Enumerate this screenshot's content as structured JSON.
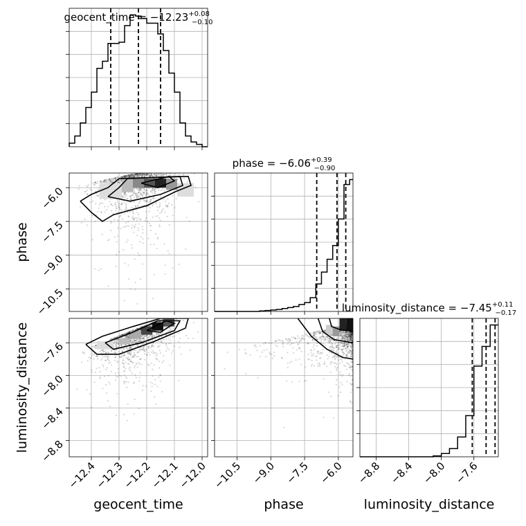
{
  "chart_data": {
    "type": "corner",
    "parameters": [
      {
        "key": "geocent_time",
        "label": "geocent_time",
        "title_main": "geocent_time = −12.23",
        "title_plus": "+0.08",
        "title_minus": "−0.10",
        "range": [
          -12.48,
          -11.98
        ],
        "ticks": [
          -12.4,
          -12.3,
          -12.2,
          -12.1,
          -12.0
        ],
        "tick_labels": [
          "−12.4",
          "−12.3",
          "−12.2",
          "−12.1",
          "−12.0"
        ],
        "quantiles": [
          -12.33,
          -12.23,
          -12.15
        ],
        "hist_edges": [
          -12.48,
          -12.46,
          -12.44,
          -12.42,
          -12.4,
          -12.38,
          -12.36,
          -12.34,
          -12.32,
          -12.3,
          -12.28,
          -12.26,
          -12.24,
          -12.22,
          -12.2,
          -12.18,
          -12.16,
          -12.14,
          -12.12,
          -12.1,
          -12.08,
          -12.06,
          -12.04,
          -12.02,
          -12.0,
          -11.98
        ],
        "hist_counts": [
          3,
          9,
          20,
          33,
          46,
          66,
          72,
          87,
          87,
          88,
          102,
          111,
          110,
          108,
          104,
          104,
          95,
          81,
          62,
          46,
          20,
          9,
          4,
          2,
          0
        ]
      },
      {
        "key": "phase",
        "label": "phase",
        "title_main": "phase = −6.06",
        "title_plus": "+0.39",
        "title_minus": "−0.90",
        "range": [
          -11.5,
          -5.35
        ],
        "ticks": [
          -10.5,
          -9.0,
          -7.5,
          -6.0
        ],
        "tick_labels": [
          "−10.5",
          "−9.0",
          "−7.5",
          "−6.0"
        ],
        "quantiles": [
          -6.96,
          -6.06,
          -5.67
        ],
        "hist_edges": [
          -11.5,
          -11.25,
          -11.0,
          -10.75,
          -10.5,
          -10.25,
          -10.0,
          -9.75,
          -9.5,
          -9.25,
          -9.0,
          -8.75,
          -8.5,
          -8.25,
          -8.0,
          -7.75,
          -7.5,
          -7.25,
          -7.0,
          -6.75,
          -6.5,
          -6.25,
          -6.0,
          -5.75,
          -5.5,
          -5.35
        ],
        "hist_counts": [
          0,
          0,
          0,
          0,
          0,
          0,
          0,
          0,
          0.5,
          1,
          1.5,
          2,
          3,
          4,
          5,
          7,
          9,
          14,
          28,
          40,
          53,
          67,
          94,
          129,
          134
        ]
      },
      {
        "key": "luminosity_distance",
        "label": "luminosity_distance",
        "title_main": "luminosity_distance = −7.45",
        "title_plus": "+0.11",
        "title_minus": "−0.17",
        "range": [
          -9.0,
          -7.3
        ],
        "ticks": [
          -8.8,
          -8.4,
          -8.0,
          -7.6
        ],
        "tick_labels": [
          "−8.8",
          "−8.4",
          "−8.0",
          "−7.6"
        ],
        "quantiles": [
          -7.62,
          -7.45,
          -7.34
        ],
        "hist_edges": [
          -9.0,
          -8.9,
          -8.8,
          -8.7,
          -8.6,
          -8.5,
          -8.4,
          -8.3,
          -8.2,
          -8.1,
          -8.0,
          -7.9,
          -7.8,
          -7.7,
          -7.6,
          -7.5,
          -7.4,
          -7.3
        ],
        "hist_counts": [
          0,
          0,
          0,
          0,
          0,
          0,
          0,
          0,
          0,
          0.5,
          2,
          5,
          12,
          25,
          55,
          67,
          80
        ]
      }
    ]
  }
}
